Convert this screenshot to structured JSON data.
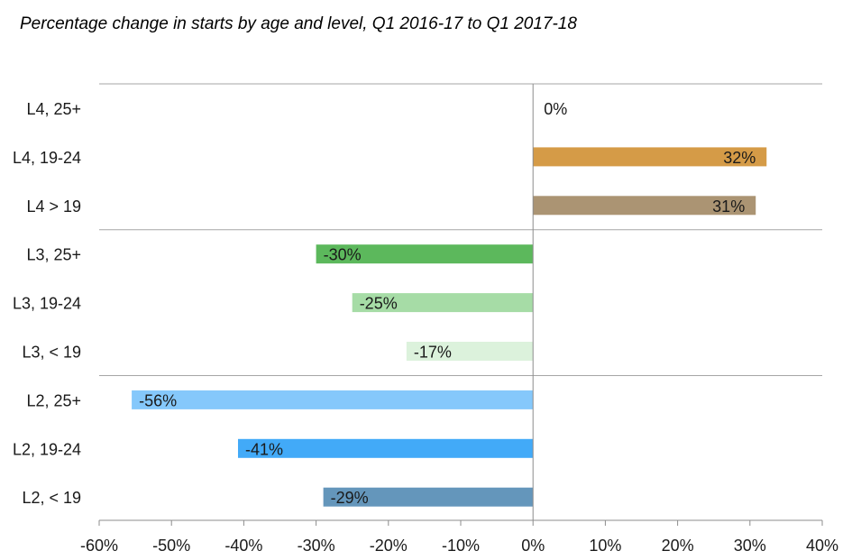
{
  "chart_data": {
    "type": "bar",
    "orientation": "horizontal",
    "title": "Percentage change in starts by age and level, Q1 2016-17 to Q1 2017-18",
    "categories": [
      "L4, 25+",
      "L4, 19-24",
      "L4 > 19",
      "L3, 25+",
      "L3, 19-24",
      "L3, < 19",
      "L2, 25+",
      "L2, 19-24",
      "L2, < 19"
    ],
    "values": [
      0,
      32.3,
      30.8,
      -30,
      -25,
      -17.5,
      -55.5,
      -40.8,
      -29
    ],
    "data_labels": [
      "0%",
      "32%",
      "31%",
      "-30%",
      "-25%",
      "-17%",
      "-56%",
      "-41%",
      "-29%"
    ],
    "colors": [
      "#d59b47",
      "#d59b47",
      "#ab9473",
      "#5cb85c",
      "#a6dca6",
      "#dcf2dc",
      "#85c8fb",
      "#42aaf8",
      "#6496bb"
    ],
    "xlim": [
      -60,
      40
    ],
    "xticks": [
      -60,
      -50,
      -40,
      -30,
      -20,
      -10,
      0,
      10,
      20,
      30,
      40
    ],
    "xtick_labels": [
      "-60%",
      "-50%",
      "-40%",
      "-30%",
      "-20%",
      "-10%",
      "0%",
      "10%",
      "20%",
      "30%",
      "40%"
    ],
    "group_separators_after": [
      2,
      5
    ],
    "grid": false,
    "legend": "none"
  }
}
